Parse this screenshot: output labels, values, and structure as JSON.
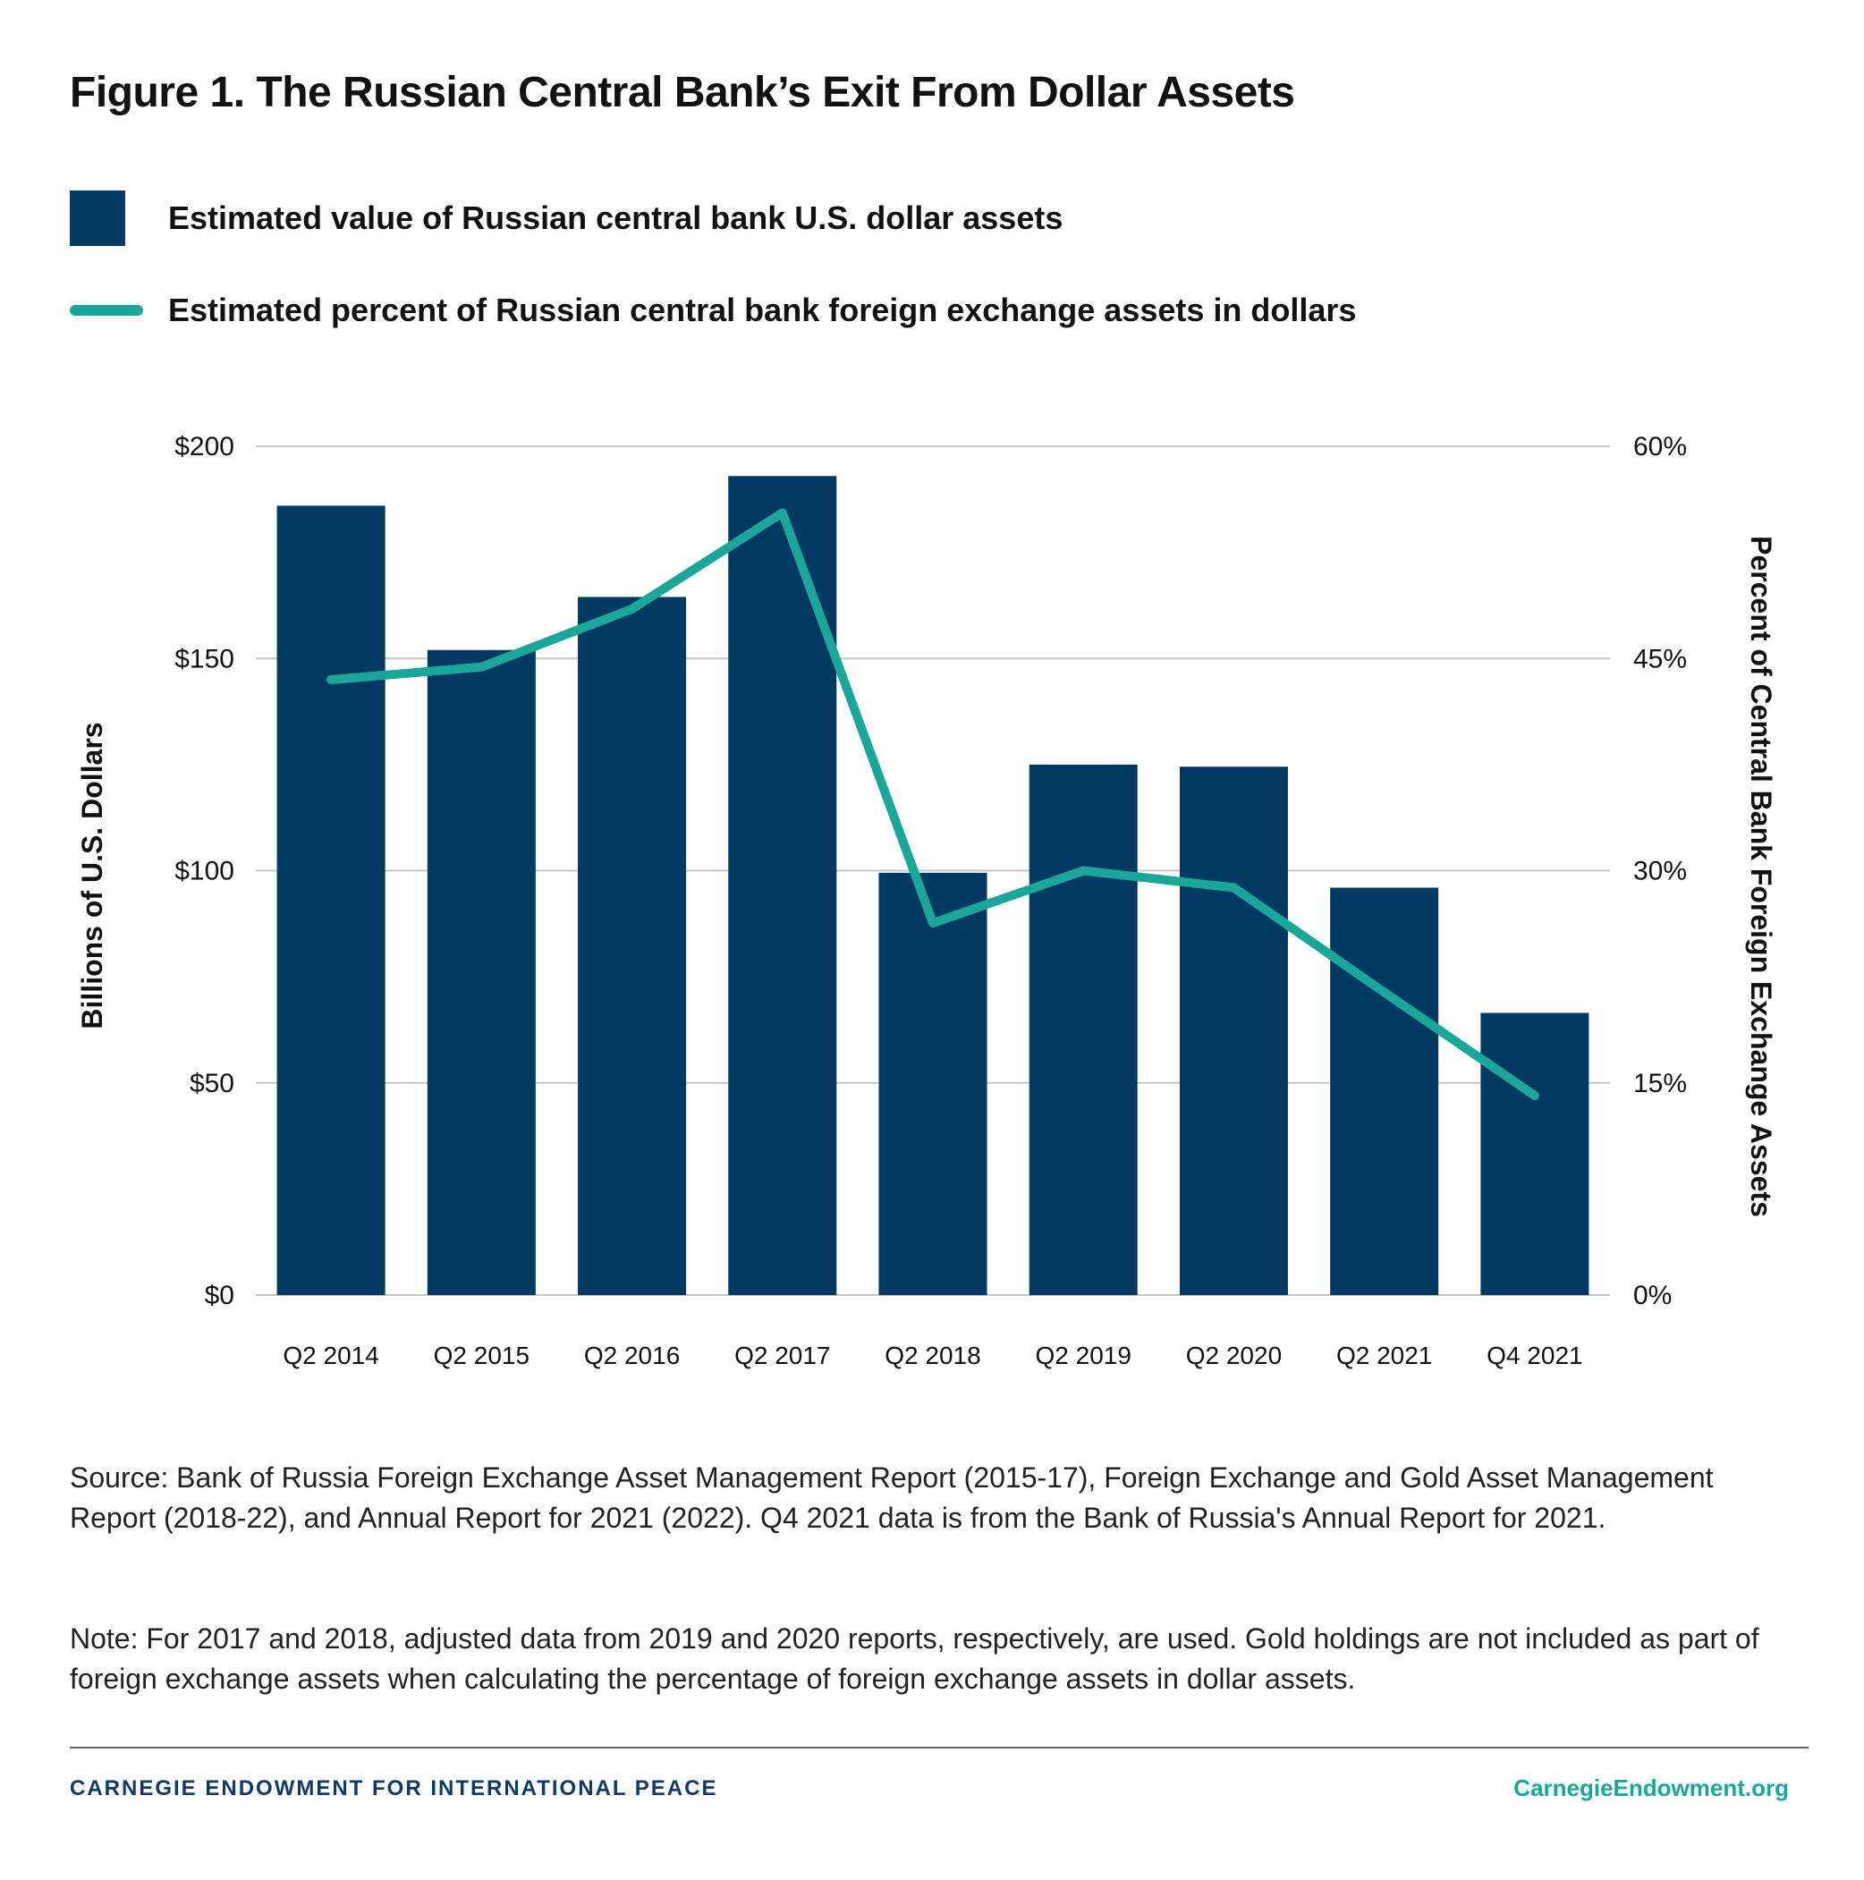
{
  "title": "Figure 1. The Russian Central Bank’s Exit From Dollar Assets",
  "legend": {
    "bars_label": "Estimated value of Russian central bank U.S. dollar assets",
    "line_label": "Estimated percent of Russian central bank foreign exchange assets in dollars"
  },
  "colors": {
    "bar": "#033a63",
    "line": "#1aa79a",
    "grid": "#c8c8c8",
    "footer_brand": "#0f3a66",
    "footer_link": "#1aa79a"
  },
  "chart_data": {
    "type": "bar",
    "categories": [
      "Q2 2014",
      "Q2 2015",
      "Q2 2016",
      "Q2 2017",
      "Q2 2018",
      "Q2 2019",
      "Q2 2020",
      "Q2 2021",
      "Q4 2021"
    ],
    "series": [
      {
        "name": "Estimated value of Russian central bank U.S. dollar assets",
        "type": "bar",
        "axis": "left",
        "values": [
          186,
          152,
          164.5,
          193,
          99.5,
          125,
          124.5,
          96,
          66.5
        ]
      },
      {
        "name": "Estimated percent of Russian central bank foreign exchange assets in dollars",
        "type": "line",
        "axis": "right",
        "values": [
          43.5,
          44.4,
          48.5,
          55.3,
          26.3,
          30,
          28.8,
          21.4,
          14.1
        ]
      }
    ],
    "ylabel": "Billions of U.S. Dollars",
    "y2label": "Percent of Central Bank Foreign Exchange Assets",
    "ylim": [
      0,
      200
    ],
    "y2lim": [
      0,
      60
    ],
    "yticks": [
      "$0",
      "$50",
      "$100",
      "$150",
      "$200"
    ],
    "y2ticks": [
      "0%",
      "15%",
      "30%",
      "45%",
      "60%"
    ],
    "grid": true,
    "legend_position": "top-left"
  },
  "notes": {
    "source": "Source: Bank of Russia Foreign Exchange Asset Management Report (2015-17), Foreign Exchange and Gold Asset Management Report (2018-22), and Annual Report for 2021 (2022). Q4 2021 data is from the Bank of Russia's Annual Report for 2021.",
    "note": "Note: For 2017 and 2018, adjusted data from 2019 and 2020 reports, respectively, are used. Gold holdings are not included as part of foreign exchange assets when calculating the percentage of foreign exchange assets in dollar assets."
  },
  "footer": {
    "brand": "CARNEGIE ENDOWMENT FOR INTERNATIONAL PEACE",
    "link": "CarnegieEndowment.org"
  }
}
